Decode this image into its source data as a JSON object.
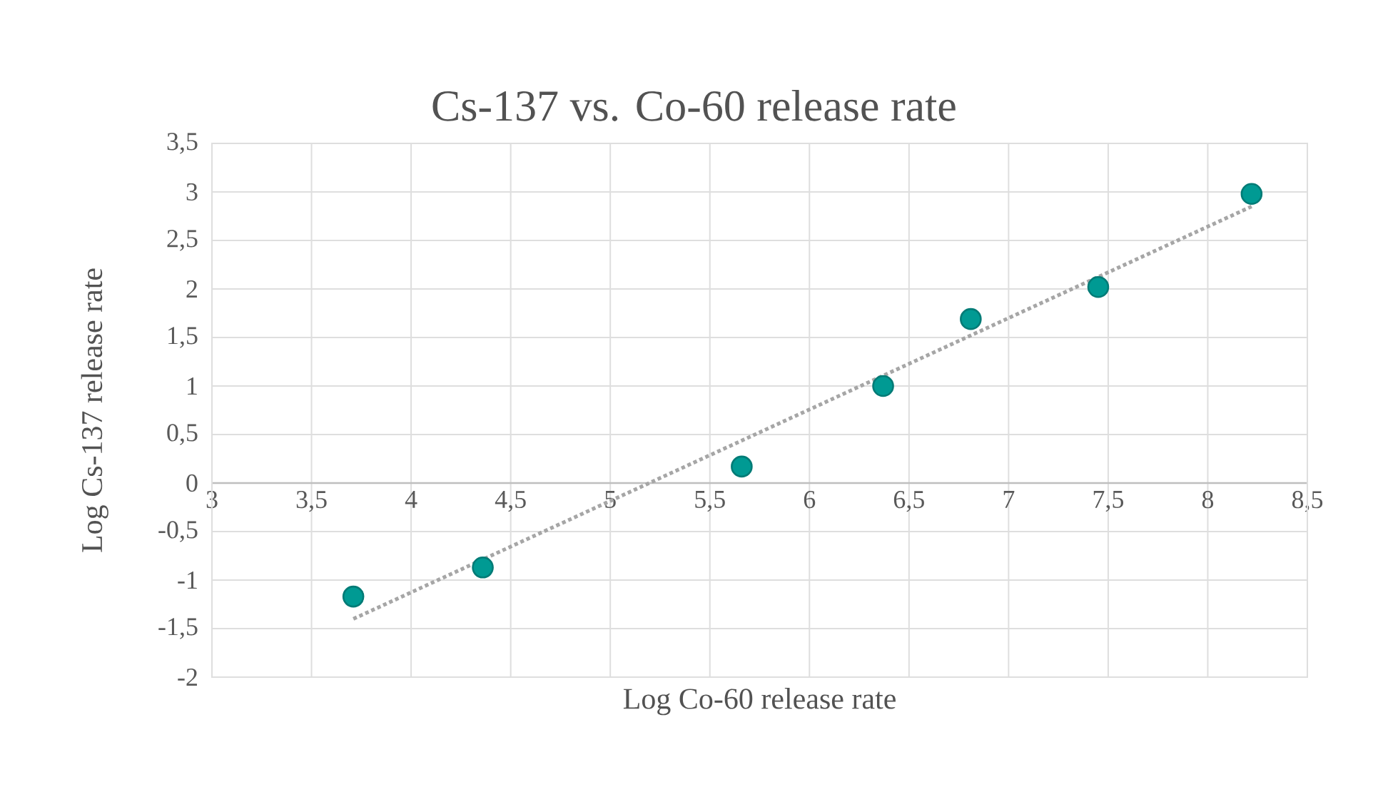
{
  "chart_data": {
    "type": "scatter",
    "title": "Cs-137 vs. Co-60  release rate",
    "xlabel": "Log Co-60 release rate",
    "ylabel": "Log Cs-137 release rate",
    "marker": "circle",
    "grid": true,
    "xlim": [
      3,
      8.5
    ],
    "ylim": [
      -2,
      3.5
    ],
    "xticks": [
      3,
      {
        "value": 3.5,
        "label": "3,5"
      },
      4,
      {
        "value": 4.5,
        "label": "4,5"
      },
      5,
      {
        "value": 5.5,
        "label": "5,5"
      },
      6,
      {
        "value": 6.5,
        "label": "6,5"
      },
      7,
      {
        "value": 7.5,
        "label": "7,5"
      },
      8,
      {
        "value": 8.5,
        "label": "8,5"
      }
    ],
    "yticks": [
      -2,
      {
        "value": -1.5,
        "label": "-1,5"
      },
      -1,
      {
        "value": -0.5,
        "label": "-0,5"
      },
      0,
      {
        "value": 0.5,
        "label": "0,5"
      },
      1,
      {
        "value": 1.5,
        "label": "1,5"
      },
      2,
      {
        "value": 2.5,
        "label": "2,5"
      },
      3,
      {
        "value": 3.5,
        "label": "3,5"
      }
    ],
    "series": [
      {
        "color": "#009a93",
        "x": [
          3.71,
          4.36,
          5.66,
          6.37,
          6.81,
          7.45,
          8.22
        ],
        "values": [
          -1.17,
          -0.87,
          0.17,
          1.0,
          1.69,
          2.02,
          2.98
        ]
      },
      {
        "type": "line",
        "color": "#a6a6a6",
        "line_style": "dotted",
        "marker": "none",
        "x": [
          3.71,
          8.22
        ],
        "values": [
          -1.4,
          2.85
        ]
      }
    ]
  }
}
